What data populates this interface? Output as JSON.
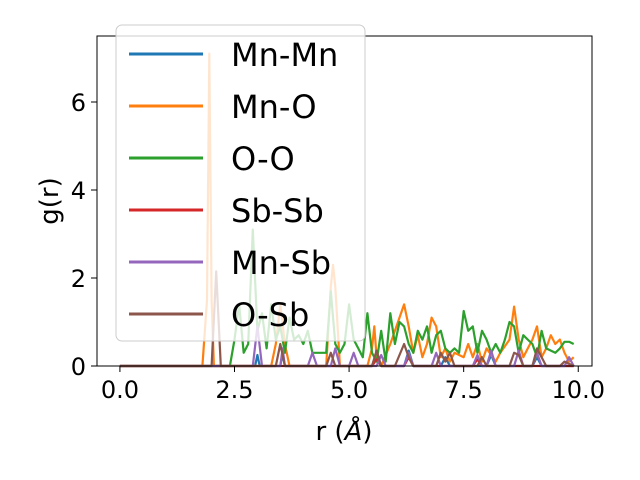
{
  "chart_data": {
    "type": "line",
    "xlabel": "r (",
    "xlabel_unit": "Å",
    "xlabel_close": ")",
    "ylabel": "g(r)",
    "xlim": [
      -0.5,
      10.3
    ],
    "ylim": [
      0,
      7.5
    ],
    "xticks": [
      0.0,
      2.5,
      5.0,
      7.5,
      10.0
    ],
    "xtick_labels": [
      "0.0",
      "2.5",
      "5.0",
      "7.5",
      "10.0"
    ],
    "yticks": [
      0,
      2,
      4,
      6
    ],
    "ytick_labels": [
      "0",
      "2",
      "4",
      "6"
    ],
    "grid": false,
    "legend_position": "top-left",
    "series": [
      {
        "name": "Mn-Mn",
        "color": "#1f77b4",
        "points": [
          [
            0,
            0
          ],
          [
            2.5,
            0
          ],
          [
            2.95,
            0
          ],
          [
            3.0,
            0.25
          ],
          [
            3.05,
            0
          ],
          [
            3.5,
            0
          ],
          [
            3.55,
            0.3
          ],
          [
            3.6,
            0
          ],
          [
            5.5,
            0
          ],
          [
            5.6,
            0.3
          ],
          [
            5.7,
            0
          ],
          [
            6.2,
            0
          ],
          [
            6.3,
            0.35
          ],
          [
            6.4,
            0
          ],
          [
            7.0,
            0
          ],
          [
            7.1,
            0.2
          ],
          [
            7.2,
            0
          ],
          [
            8.0,
            0
          ],
          [
            8.1,
            0.25
          ],
          [
            8.2,
            0
          ],
          [
            9.0,
            0
          ],
          [
            9.1,
            0.2
          ],
          [
            9.2,
            0
          ],
          [
            9.9,
            0
          ]
        ]
      },
      {
        "name": "Mn-O",
        "color": "#ff7f0e",
        "points": [
          [
            0,
            0
          ],
          [
            1.8,
            0
          ],
          [
            1.9,
            1.5
          ],
          [
            1.95,
            7.1
          ],
          [
            2.0,
            1.5
          ],
          [
            2.05,
            0
          ],
          [
            3.3,
            0
          ],
          [
            3.4,
            0.5
          ],
          [
            3.5,
            1.4
          ],
          [
            3.6,
            0.5
          ],
          [
            3.7,
            0
          ],
          [
            4.5,
            0
          ],
          [
            4.6,
            1.8
          ],
          [
            4.65,
            2.3
          ],
          [
            4.7,
            1.8
          ],
          [
            4.8,
            0
          ],
          [
            5.4,
            0
          ],
          [
            5.5,
            0.4
          ],
          [
            5.55,
            0.9
          ],
          [
            5.6,
            0.2
          ],
          [
            5.7,
            0
          ],
          [
            5.9,
            0.5
          ],
          [
            6.0,
            0.8
          ],
          [
            6.1,
            1.1
          ],
          [
            6.2,
            1.4
          ],
          [
            6.3,
            0.9
          ],
          [
            6.4,
            0.3
          ],
          [
            6.5,
            0.7
          ],
          [
            6.6,
            0.2
          ],
          [
            6.7,
            0.5
          ],
          [
            6.8,
            1.1
          ],
          [
            6.9,
            0.9
          ],
          [
            7.0,
            0.2
          ],
          [
            7.1,
            0.4
          ],
          [
            7.2,
            0.1
          ],
          [
            7.3,
            0.3
          ],
          [
            7.5,
            0.2
          ],
          [
            7.6,
            0.5
          ],
          [
            7.7,
            0.2
          ],
          [
            7.8,
            0.5
          ],
          [
            7.9,
            0.1
          ],
          [
            8.0,
            0.4
          ],
          [
            8.2,
            0.1
          ],
          [
            8.3,
            0.3
          ],
          [
            8.5,
            0.6
          ],
          [
            8.6,
            1.35
          ],
          [
            8.7,
            0.6
          ],
          [
            8.8,
            0.2
          ],
          [
            8.9,
            0.4
          ],
          [
            9.0,
            0.6
          ],
          [
            9.1,
            0.9
          ],
          [
            9.2,
            0.2
          ],
          [
            9.3,
            0.4
          ],
          [
            9.4,
            0.7
          ],
          [
            9.5,
            0.5
          ],
          [
            9.6,
            0.6
          ],
          [
            9.7,
            0.3
          ],
          [
            9.8,
            0.1
          ],
          [
            9.9,
            0.2
          ]
        ]
      },
      {
        "name": "O-O",
        "color": "#2ca02c",
        "points": [
          [
            0,
            0
          ],
          [
            2.4,
            0
          ],
          [
            2.5,
            0.6
          ],
          [
            2.6,
            1.4
          ],
          [
            2.7,
            0.3
          ],
          [
            2.8,
            0.5
          ],
          [
            2.9,
            3.1
          ],
          [
            3.0,
            0.8
          ],
          [
            3.1,
            1.2
          ],
          [
            3.2,
            0.4
          ],
          [
            3.3,
            1.4
          ],
          [
            3.4,
            0.6
          ],
          [
            3.5,
            0.9
          ],
          [
            3.6,
            0.3
          ],
          [
            3.7,
            1.1
          ],
          [
            3.8,
            0.6
          ],
          [
            3.9,
            0.7
          ],
          [
            4.0,
            0.5
          ],
          [
            4.1,
            0.8
          ],
          [
            4.2,
            0.3
          ],
          [
            4.4,
            0.3
          ],
          [
            4.5,
            0.3
          ],
          [
            4.6,
            1.7
          ],
          [
            4.7,
            0.5
          ],
          [
            4.8,
            0.3
          ],
          [
            4.9,
            0.5
          ],
          [
            5.0,
            1.4
          ],
          [
            5.1,
            0.6
          ],
          [
            5.2,
            0.4
          ],
          [
            5.3,
            0.2
          ],
          [
            5.4,
            1.2
          ],
          [
            5.5,
            0.3
          ],
          [
            5.6,
            0.1
          ],
          [
            5.7,
            0.8
          ],
          [
            5.8,
            0.1
          ],
          [
            5.9,
            1.2
          ],
          [
            6.0,
            0.5
          ],
          [
            6.1,
            1.0
          ],
          [
            6.2,
            0.9
          ],
          [
            6.3,
            0.5
          ],
          [
            6.4,
            0.3
          ],
          [
            6.5,
            0.8
          ],
          [
            6.6,
            0.6
          ],
          [
            6.7,
            0.9
          ],
          [
            6.8,
            0.3
          ],
          [
            6.9,
            0.7
          ],
          [
            7.0,
            0.8
          ],
          [
            7.1,
            0.4
          ],
          [
            7.2,
            0.3
          ],
          [
            7.3,
            0.4
          ],
          [
            7.4,
            0.3
          ],
          [
            7.5,
            1.25
          ],
          [
            7.6,
            0.8
          ],
          [
            7.7,
            0.9
          ],
          [
            7.8,
            0.3
          ],
          [
            7.9,
            0.8
          ],
          [
            8.0,
            0.6
          ],
          [
            8.1,
            0.3
          ],
          [
            8.2,
            0.5
          ],
          [
            8.3,
            0.3
          ],
          [
            8.4,
            0.6
          ],
          [
            8.5,
            1.0
          ],
          [
            8.6,
            0.9
          ],
          [
            8.7,
            0.3
          ],
          [
            8.8,
            0.7
          ],
          [
            8.9,
            0.6
          ],
          [
            9.0,
            0.5
          ],
          [
            9.1,
            0.2
          ],
          [
            9.2,
            0.8
          ],
          [
            9.3,
            0.4
          ],
          [
            9.5,
            0.3
          ],
          [
            9.6,
            0.4
          ],
          [
            9.7,
            0.55
          ],
          [
            9.8,
            0.55
          ],
          [
            9.9,
            0.5
          ]
        ]
      },
      {
        "name": "Sb-Sb",
        "color": "#d62728",
        "points": [
          [
            0,
            0
          ],
          [
            5.5,
            0
          ],
          [
            5.6,
            0.15
          ],
          [
            5.7,
            0
          ],
          [
            6.2,
            0
          ],
          [
            6.3,
            0.2
          ],
          [
            6.4,
            0
          ],
          [
            7.7,
            0
          ],
          [
            7.8,
            0.15
          ],
          [
            7.9,
            0
          ],
          [
            9.9,
            0
          ]
        ]
      },
      {
        "name": "Mn-Sb",
        "color": "#9467bd",
        "points": [
          [
            0,
            0
          ],
          [
            2.9,
            0
          ],
          [
            3.0,
            0.9
          ],
          [
            3.1,
            0
          ],
          [
            3.5,
            0
          ],
          [
            3.55,
            0.4
          ],
          [
            3.6,
            0
          ],
          [
            4.1,
            0
          ],
          [
            4.2,
            0.3
          ],
          [
            4.3,
            0
          ],
          [
            4.6,
            0
          ],
          [
            4.7,
            0.4
          ],
          [
            4.8,
            0
          ],
          [
            5.0,
            0
          ],
          [
            5.1,
            0.3
          ],
          [
            5.2,
            0
          ],
          [
            5.6,
            0
          ],
          [
            5.7,
            0.25
          ],
          [
            5.8,
            0
          ],
          [
            6.2,
            0
          ],
          [
            6.3,
            0.3
          ],
          [
            6.4,
            0
          ],
          [
            6.8,
            0
          ],
          [
            6.9,
            0.3
          ],
          [
            7.0,
            0
          ],
          [
            7.7,
            0
          ],
          [
            7.8,
            0.25
          ],
          [
            7.9,
            0
          ],
          [
            8.0,
            0
          ],
          [
            8.1,
            0.35
          ],
          [
            8.2,
            0
          ],
          [
            8.6,
            0
          ],
          [
            8.7,
            0.35
          ],
          [
            8.8,
            0
          ],
          [
            9.0,
            0
          ],
          [
            9.1,
            0.3
          ],
          [
            9.2,
            0
          ],
          [
            9.7,
            0
          ],
          [
            9.8,
            0.2
          ],
          [
            9.9,
            0
          ]
        ]
      },
      {
        "name": "O-Sb",
        "color": "#8c564b",
        "points": [
          [
            0,
            0
          ],
          [
            2.0,
            0
          ],
          [
            2.1,
            2.15
          ],
          [
            2.2,
            0
          ],
          [
            3.4,
            0
          ],
          [
            3.5,
            0.5
          ],
          [
            3.6,
            0
          ],
          [
            4.5,
            0
          ],
          [
            4.6,
            0.3
          ],
          [
            4.7,
            0
          ],
          [
            5.5,
            0
          ],
          [
            5.6,
            0.35
          ],
          [
            5.7,
            0
          ],
          [
            6.0,
            0
          ],
          [
            6.1,
            0.25
          ],
          [
            6.2,
            0.5
          ],
          [
            6.3,
            0.2
          ],
          [
            6.4,
            0
          ],
          [
            6.9,
            0
          ],
          [
            7.0,
            0.3
          ],
          [
            7.1,
            0.1
          ],
          [
            7.2,
            0.3
          ],
          [
            7.3,
            0
          ],
          [
            7.8,
            0
          ],
          [
            7.9,
            0.2
          ],
          [
            8.0,
            0
          ],
          [
            8.5,
            0
          ],
          [
            8.6,
            0.3
          ],
          [
            8.7,
            0.25
          ],
          [
            8.8,
            0
          ],
          [
            9.0,
            0
          ],
          [
            9.1,
            0.4
          ],
          [
            9.2,
            0.2
          ],
          [
            9.3,
            0
          ],
          [
            9.6,
            0
          ],
          [
            9.7,
            0.1
          ],
          [
            9.9,
            0
          ]
        ]
      }
    ]
  }
}
